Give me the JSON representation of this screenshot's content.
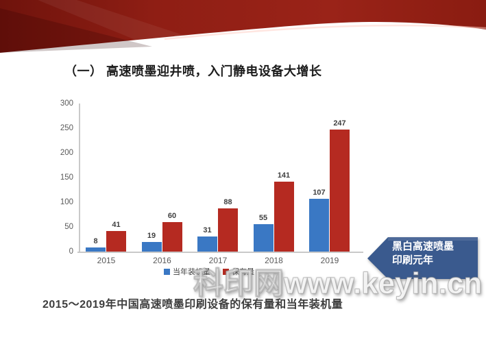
{
  "slide": {
    "title": "（一） 高速喷墨迎井喷，入门静电设备大增长",
    "caption": "2015～2019年中国高速喷墨印刷设备的保有量和当年装机量",
    "watermark": "科印网www.keyin.cn",
    "callout": {
      "line1": "黑白高速喷墨",
      "line2": "印刷元年",
      "color": "#3a5a8e"
    },
    "ribbon_color": "#8f1e14"
  },
  "chart_data": {
    "type": "bar",
    "title": "",
    "xlabel": "",
    "ylabel": "",
    "categories": [
      "2015",
      "2016",
      "2017",
      "2018",
      "2019"
    ],
    "series": [
      {
        "name": "当年装机量",
        "color": "#3a78c4",
        "values": [
          8,
          19,
          31,
          55,
          107
        ]
      },
      {
        "name": "保有量",
        "color": "#b52a21",
        "values": [
          41,
          60,
          88,
          141,
          247
        ]
      }
    ],
    "ylim": [
      0,
      300
    ],
    "yticks": [
      0,
      50,
      100,
      150,
      200,
      250,
      300
    ],
    "grid": false,
    "legend_position": "bottom"
  }
}
